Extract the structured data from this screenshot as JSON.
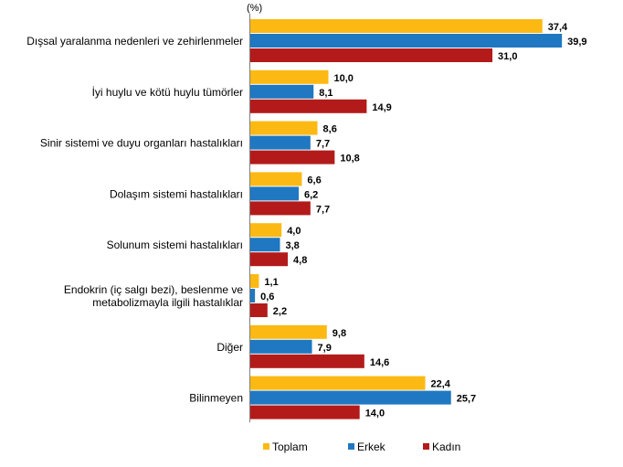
{
  "chart_data": {
    "type": "bar",
    "orientation": "horizontal",
    "unit_label": "(%)",
    "categories": [
      [
        "Dışsal yaralanma nedenleri ve zehirlenmeler"
      ],
      [
        "İyi huylu ve kötü huylu tümörler"
      ],
      [
        "Sinir sistemi ve duyu organları hastalıkları"
      ],
      [
        "Dolaşım sistemi hastalıkları"
      ],
      [
        "Solunum sistemi hastalıkları"
      ],
      [
        "Endokrin (iç salgı bezi), beslenme ve",
        "metabolizmayla ilgili hastalıklar"
      ],
      [
        "Diğer"
      ],
      [
        "Bilinmeyen"
      ]
    ],
    "series": [
      {
        "name": "Toplam",
        "color": "#FDB913",
        "values": [
          37.4,
          10.0,
          8.6,
          6.6,
          4.0,
          1.1,
          9.8,
          22.4
        ],
        "labels": [
          "37,4",
          "10,0",
          "8,6",
          "6,6",
          "4,0",
          "1,1",
          "9,8",
          "22,4"
        ]
      },
      {
        "name": "Erkek",
        "color": "#1F78C1",
        "values": [
          39.9,
          8.1,
          7.7,
          6.2,
          3.8,
          0.6,
          7.9,
          25.7
        ],
        "labels": [
          "39,9",
          "8,1",
          "7,7",
          "6,2",
          "3,8",
          "0,6",
          "7,9",
          "25,7"
        ]
      },
      {
        "name": "Kadın",
        "color": "#B31B1B",
        "values": [
          31.0,
          14.9,
          10.8,
          7.7,
          4.8,
          2.2,
          14.6,
          14.0
        ],
        "labels": [
          "31,0",
          "14,9",
          "10,8",
          "7,7",
          "4,8",
          "2,2",
          "14,6",
          "14,0"
        ]
      }
    ],
    "xlim": [
      0,
      45
    ],
    "grid": false,
    "legend_position": "bottom"
  }
}
